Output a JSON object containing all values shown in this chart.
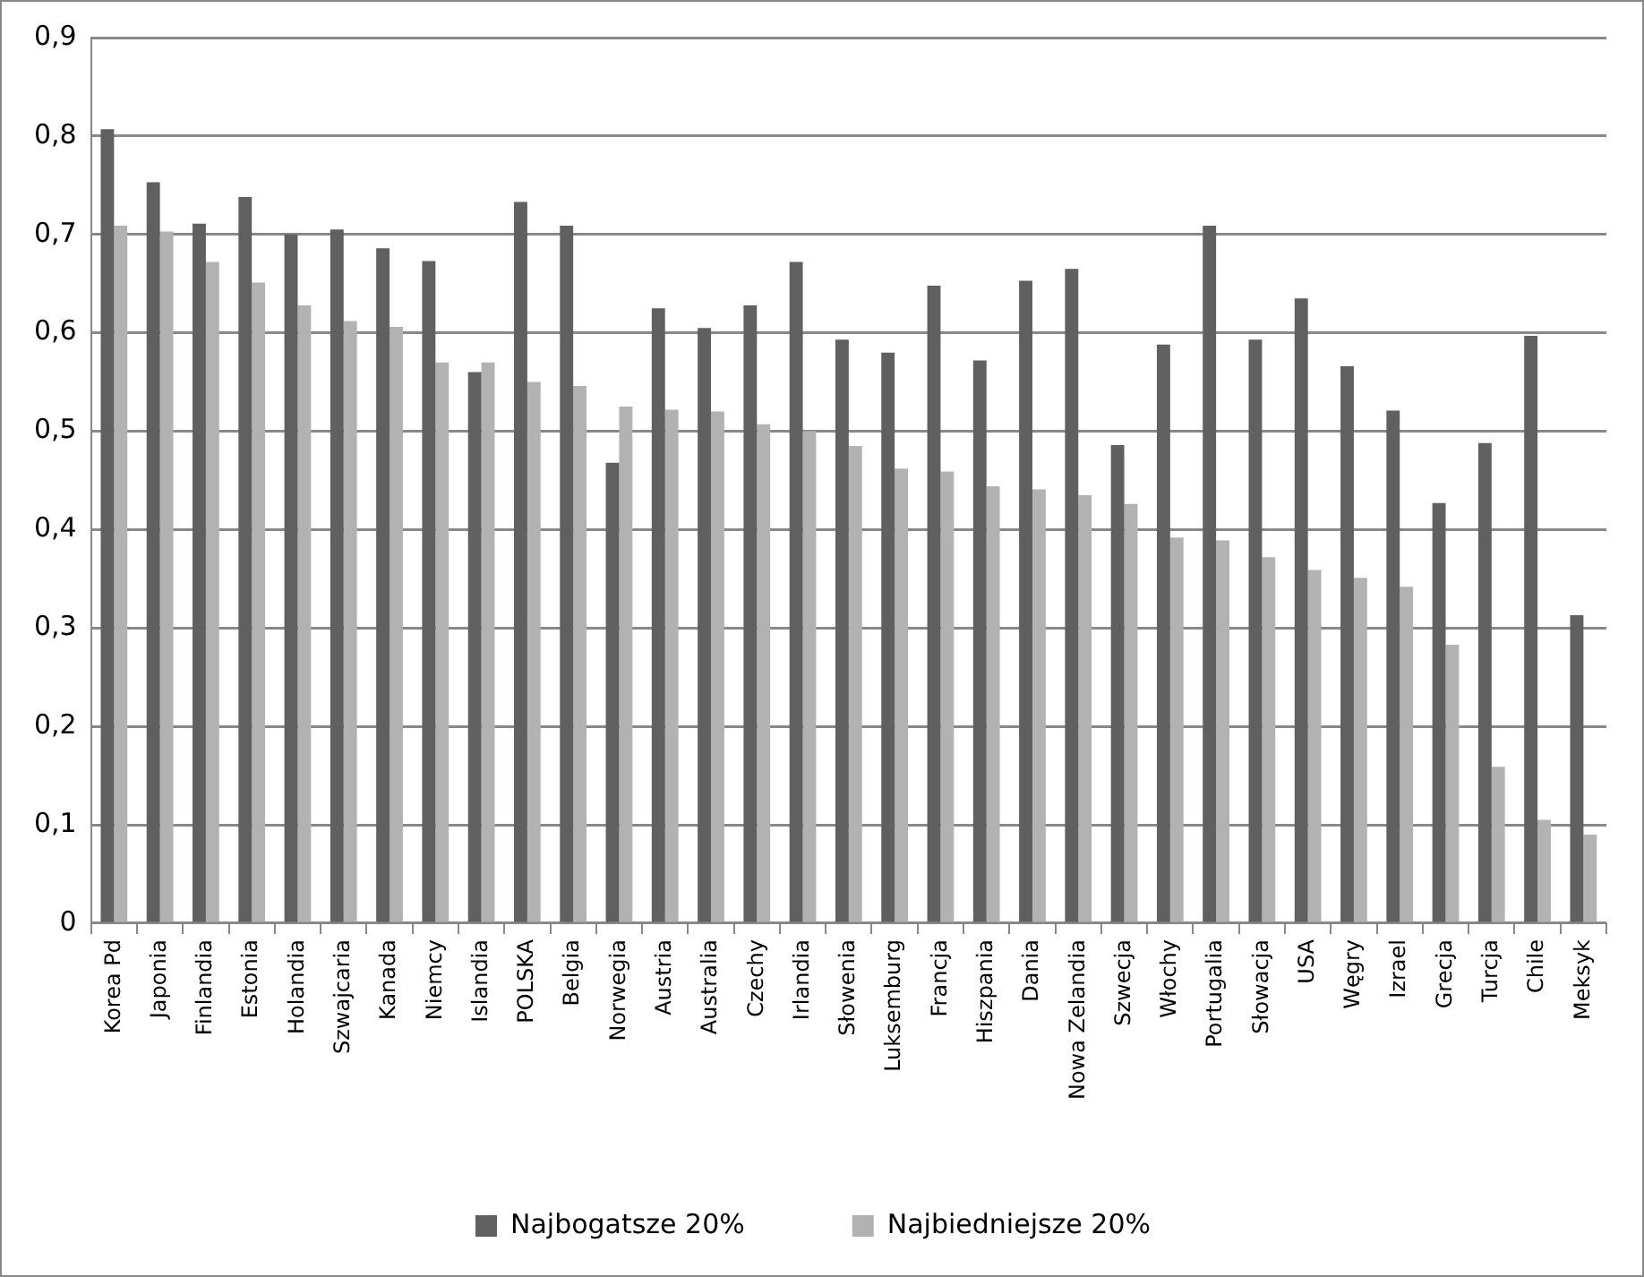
{
  "chart_data": {
    "type": "bar",
    "categories": [
      "Korea Pd",
      "Japonia",
      "Finlandia",
      "Estonia",
      "Holandia",
      "Szwajcaria",
      "Kanada",
      "Niemcy",
      "Islandia",
      "POLSKA",
      "Belgia",
      "Norwegia",
      "Austria",
      "Australia",
      "Czechy",
      "Irlandia",
      "Słowenia",
      "Luksemburg",
      "Francja",
      "Hiszpania",
      "Dania",
      "Nowa Zelandia",
      "Szwecja",
      "Włochy",
      "Portugalia",
      "Słowacja",
      "USA",
      "Węgry",
      "Izrael",
      "Grecja",
      "Turcja",
      "Chile",
      "Meksyk"
    ],
    "series": [
      {
        "name": "Najbogatsze 20%",
        "color": "#606060",
        "values": [
          0.807,
          0.753,
          0.711,
          0.738,
          0.7,
          0.705,
          0.686,
          0.673,
          0.56,
          0.733,
          0.709,
          0.468,
          0.625,
          0.605,
          0.628,
          0.672,
          0.593,
          0.58,
          0.648,
          0.572,
          0.653,
          0.665,
          0.486,
          0.588,
          0.709,
          0.593,
          0.635,
          0.566,
          0.521,
          0.427,
          0.488,
          0.597,
          0.313
        ]
      },
      {
        "name": "Najbiedniejsze 20%",
        "color": "#b2b2b2",
        "values": [
          0.709,
          0.703,
          0.672,
          0.651,
          0.628,
          0.612,
          0.606,
          0.57,
          0.57,
          0.55,
          0.546,
          0.525,
          0.522,
          0.52,
          0.507,
          0.5,
          0.485,
          0.462,
          0.459,
          0.444,
          0.441,
          0.435,
          0.426,
          0.392,
          0.389,
          0.372,
          0.359,
          0.351,
          0.342,
          0.283,
          0.159,
          0.105,
          0.09
        ]
      }
    ],
    "ylim": [
      0,
      0.9
    ],
    "yticks": [
      0,
      {
        "value": 0.1,
        "label": "0,1"
      },
      {
        "value": 0.2,
        "label": "0,2"
      },
      {
        "value": 0.3,
        "label": "0,3"
      },
      {
        "value": 0.4,
        "label": "0,4"
      },
      {
        "value": 0.5,
        "label": "0,5"
      },
      {
        "value": 0.6,
        "label": "0,6"
      },
      {
        "value": 0.7,
        "label": "0,7"
      },
      {
        "value": 0.8,
        "label": "0,8"
      },
      {
        "value": 0.9,
        "label": "0,9"
      }
    ],
    "grid": "y",
    "legend": "bottom"
  }
}
